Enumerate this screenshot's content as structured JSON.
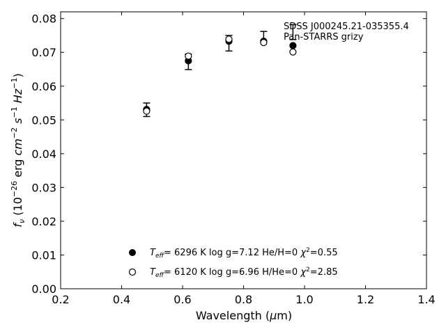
{
  "chart_data": {
    "type": "scatter",
    "title": "",
    "xlabel": "Wavelength (μm)",
    "ylabel": "f_ν (10^-26 erg cm^-2 s^-1 Hz^-1)",
    "xlim": [
      0.2,
      1.4
    ],
    "ylim": [
      0.0,
      0.082
    ],
    "xticks": [
      "0.2",
      "0.4",
      "0.6",
      "0.8",
      "1.0",
      "1.2",
      "1.4"
    ],
    "yticks": [
      "0.00",
      "0.01",
      "0.02",
      "0.03",
      "0.04",
      "0.05",
      "0.06",
      "0.07",
      "0.08"
    ],
    "grid": false,
    "annotation": [
      "SDSS J000245.21-035355.4",
      "Pan-STARRS grizy"
    ],
    "legend_position": "lower-center",
    "observed": {
      "x": [
        0.482,
        0.619,
        0.752,
        0.866,
        0.962
      ],
      "y": [
        0.053,
        0.0672,
        0.0727,
        0.0745,
        0.076
      ],
      "yerr": [
        0.002,
        0.0023,
        0.0023,
        0.0017,
        0.0022
      ]
    },
    "series": [
      {
        "name": "Teff= 6296 K  log g=7.12  He/H=0  χ²=0.55",
        "marker": "filled-circle",
        "x": [
          0.482,
          0.619,
          0.752,
          0.866,
          0.962
        ],
        "y": [
          0.0531,
          0.0675,
          0.0733,
          0.0733,
          0.072
        ]
      },
      {
        "name": "Teff= 6120 K  log g=6.96  H/He=0  χ²=2.85",
        "marker": "open-circle",
        "x": [
          0.482,
          0.619,
          0.752,
          0.866,
          0.962
        ],
        "y": [
          0.0526,
          0.0689,
          0.0739,
          0.0729,
          0.0701
        ]
      }
    ]
  },
  "legend": [
    {
      "teff": "6296 K",
      "logg": "log g=7.12",
      "comp": "He/H=0",
      "chi2": "=0.55"
    },
    {
      "teff": "6120 K",
      "logg": "log g=6.96",
      "comp": "H/He=0",
      "chi2": "=2.85"
    }
  ],
  "colors": {
    "marker": "#000000",
    "background": "#ffffff"
  }
}
